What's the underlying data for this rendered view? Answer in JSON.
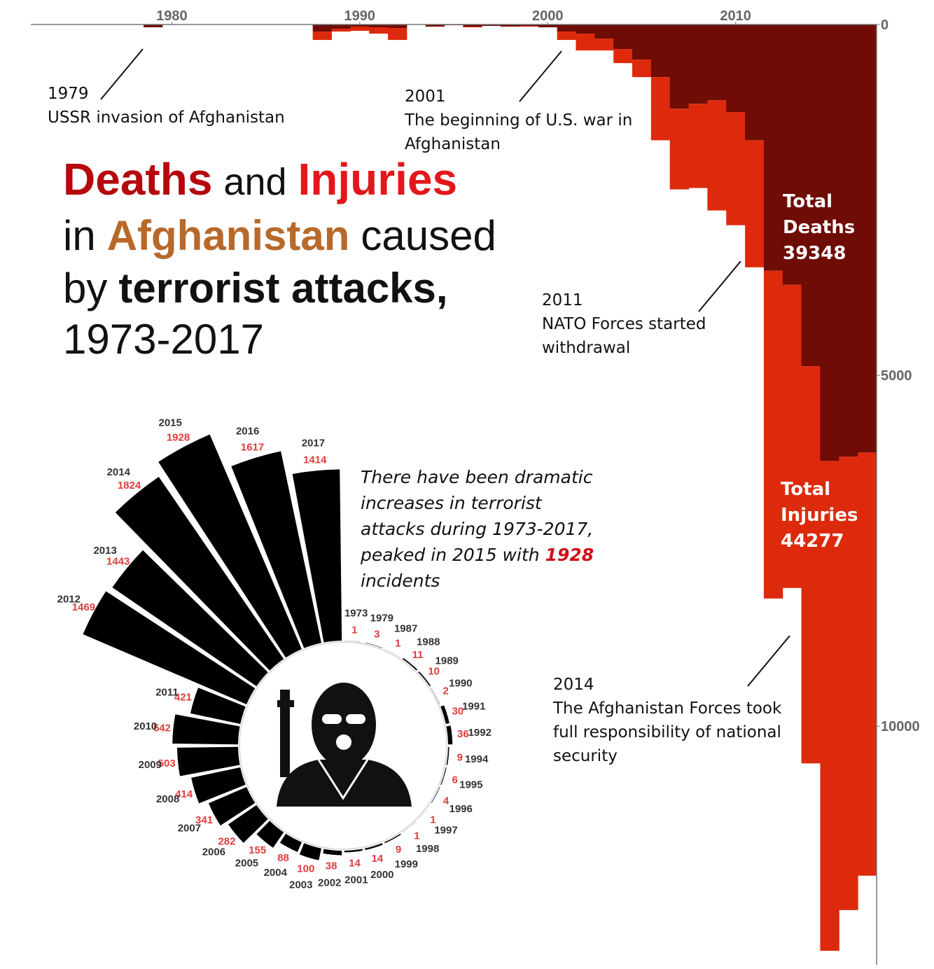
{
  "title": [
    "Deaths",
    "and",
    "Injuries",
    "in",
    "Afghanistan",
    "caused",
    "by",
    "terrorist attacks,",
    "1973-2017"
  ],
  "annotations": [
    {
      "lines": [
        "1979",
        "USSR invasion of Afghanistan"
      ]
    },
    {
      "lines": [
        "2001",
        "The beginning of U.S. war in",
        "Afghanistan"
      ]
    },
    {
      "lines": [
        "2011",
        "NATO Forces started",
        "withdrawal"
      ]
    },
    {
      "lines": [
        "2014",
        "The Afghanistan Forces took",
        "full responsibility of national",
        "security"
      ]
    }
  ],
  "totals": [
    {
      "lines": [
        "Total",
        "Deaths"
      ],
      "value": 39348
    },
    {
      "lines": [
        "Total",
        "Injuries"
      ],
      "value": 44277
    }
  ],
  "note": [
    "There have been dramatic",
    "increases in terrorist",
    "attacks during 1973-2017,",
    "peaked in 2015 with",
    "1928",
    "incidents"
  ],
  "chart_data": [
    {
      "type": "stacked-step",
      "y_inverted": true,
      "x": [
        1973,
        1974,
        1975,
        1976,
        1977,
        1978,
        1979,
        1980,
        1981,
        1982,
        1983,
        1984,
        1985,
        1986,
        1987,
        1988,
        1989,
        1990,
        1991,
        1992,
        1993,
        1994,
        1995,
        1996,
        1997,
        1998,
        1999,
        2000,
        2001,
        2002,
        2003,
        2004,
        2005,
        2006,
        2007,
        2008,
        2009,
        2010,
        2011,
        2012,
        2013,
        2014,
        2015,
        2016,
        2017
      ],
      "series": [
        {
          "name": "Deaths",
          "color": "#6e0c05",
          "values": [
            0,
            0,
            0,
            0,
            0,
            0,
            40,
            0,
            0,
            0,
            0,
            0,
            0,
            0,
            0,
            100,
            60,
            30,
            40,
            50,
            0,
            30,
            10,
            30,
            20,
            30,
            20,
            40,
            100,
            130,
            200,
            350,
            500,
            750,
            1200,
            1130,
            1080,
            1250,
            1650,
            3510,
            3710,
            4870,
            6220,
            6160,
            6100
          ]
        },
        {
          "name": "Injuries",
          "color": "#dd2a0c",
          "values": [
            0,
            0,
            0,
            0,
            0,
            0,
            0,
            0,
            0,
            0,
            0,
            0,
            0,
            0,
            0,
            120,
            40,
            60,
            90,
            170,
            0,
            0,
            0,
            10,
            0,
            0,
            10,
            0,
            120,
            240,
            170,
            200,
            250,
            900,
            1150,
            1200,
            1570,
            1610,
            1810,
            4670,
            4320,
            5660,
            6980,
            6460,
            6030
          ]
        }
      ],
      "xlim": [
        1972.5,
        2017.5
      ],
      "xticks": [
        1980,
        1990,
        2000,
        2010
      ],
      "ylim": [
        0,
        13400
      ],
      "yticks": [
        0,
        5000,
        10000
      ]
    },
    {
      "type": "radial-bar",
      "color": "#000000",
      "label_color": "#e03c3c",
      "categories": [
        "1973",
        "1979",
        "1987",
        "1988",
        "1989",
        "1990",
        "1991",
        "1992",
        "1994",
        "1995",
        "1996",
        "1997",
        "1998",
        "1999",
        "2000",
        "2001",
        "2002",
        "2003",
        "2004",
        "2005",
        "2006",
        "2007",
        "2008",
        "2009",
        "2010",
        "2011",
        "2012",
        "2013",
        "2014",
        "2015",
        "2016",
        "2017"
      ],
      "values": [
        1,
        3,
        1,
        11,
        10,
        2,
        30,
        36,
        9,
        6,
        4,
        1,
        1,
        9,
        14,
        14,
        38,
        100,
        88,
        155,
        282,
        341,
        414,
        503,
        542,
        421,
        1469,
        1443,
        1824,
        1928,
        1617,
        1414
      ]
    }
  ]
}
